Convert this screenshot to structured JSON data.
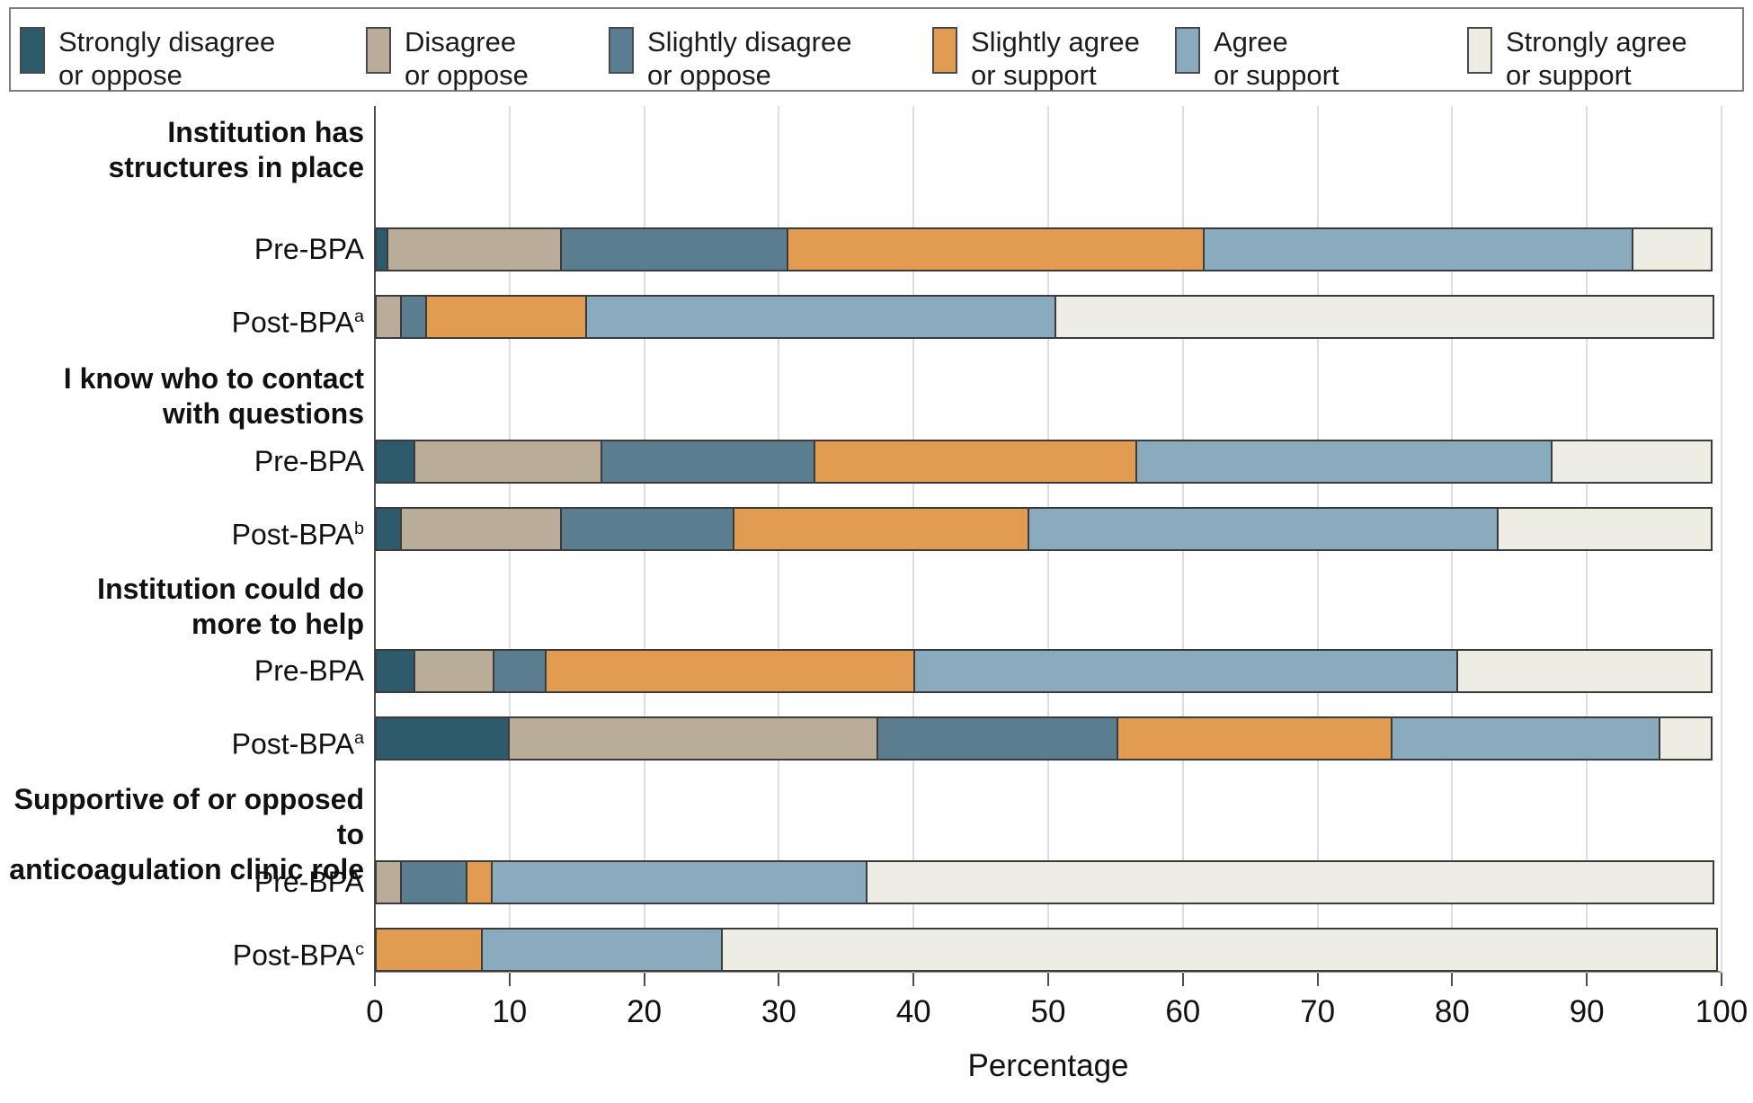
{
  "legend": {
    "items": [
      {
        "line1": "Strongly disagree",
        "line2": "or oppose",
        "color": "#2d5b6c"
      },
      {
        "line1": "Disagree",
        "line2": "or oppose",
        "color": "#b9ac99"
      },
      {
        "line1": "Slightly disagree",
        "line2": "or oppose",
        "color": "#5a7e90"
      },
      {
        "line1": "Slightly agree",
        "line2": "or support",
        "color": "#e29c51"
      },
      {
        "line1": "Agree",
        "line2": "or support",
        "color": "#8aabbd"
      },
      {
        "line1": "Strongly agree",
        "line2": "or support",
        "color": "#eeede4"
      }
    ]
  },
  "chart_data": {
    "type": "bar",
    "orientation": "horizontal",
    "stacked": true,
    "xlabel": "Percentage",
    "xlim": [
      0,
      100
    ],
    "xticks": [
      0,
      10,
      20,
      30,
      40,
      50,
      60,
      70,
      80,
      90,
      100
    ],
    "grid": true,
    "legend_position": "top",
    "categories": [
      "Strongly disagree or oppose",
      "Disagree or oppose",
      "Slightly disagree or oppose",
      "Slightly agree or support",
      "Agree or support",
      "Strongly agree or support"
    ],
    "colors": [
      "#2d5b6c",
      "#b9ac99",
      "#5a7e90",
      "#e29c51",
      "#8aabbd",
      "#eeede4"
    ],
    "groups": [
      {
        "title_lines": [
          "Institution has",
          "structures in place"
        ],
        "rows": [
          {
            "label": "Pre-BPA",
            "footnote": "",
            "values": [
              1,
              13,
              17,
              31,
              32,
              6
            ]
          },
          {
            "label": "Post-BPA",
            "footnote": "a",
            "values": [
              0,
              2,
              2,
              12,
              35,
              49
            ]
          }
        ]
      },
      {
        "title_lines": [
          "I know who to contact",
          "with questions"
        ],
        "rows": [
          {
            "label": "Pre-BPA",
            "footnote": "",
            "values": [
              3,
              14,
              16,
              24,
              31,
              12
            ]
          },
          {
            "label": "Post-BPA",
            "footnote": "b",
            "values": [
              2,
              12,
              13,
              22,
              35,
              16
            ]
          }
        ]
      },
      {
        "title_lines": [
          "Institution could do",
          "more to help"
        ],
        "rows": [
          {
            "label": "Pre-BPA",
            "footnote": "",
            "values": [
              3,
              6,
              4,
              27.5,
              40.5,
              19
            ]
          },
          {
            "label": "Post-BPA",
            "footnote": "a",
            "values": [
              10,
              27.5,
              18,
              20.5,
              20,
              4
            ]
          }
        ]
      },
      {
        "title_lines": [
          "Supportive of or opposed to",
          "anticoagulation clinic role"
        ],
        "rows": [
          {
            "label": "Pre-BPA",
            "footnote": "",
            "values": [
              0,
              2,
              5,
              2,
              28,
              63
            ]
          },
          {
            "label": "Post-BPA",
            "footnote": "c",
            "values": [
              0,
              0,
              0,
              8,
              18,
              74
            ]
          }
        ]
      }
    ]
  }
}
